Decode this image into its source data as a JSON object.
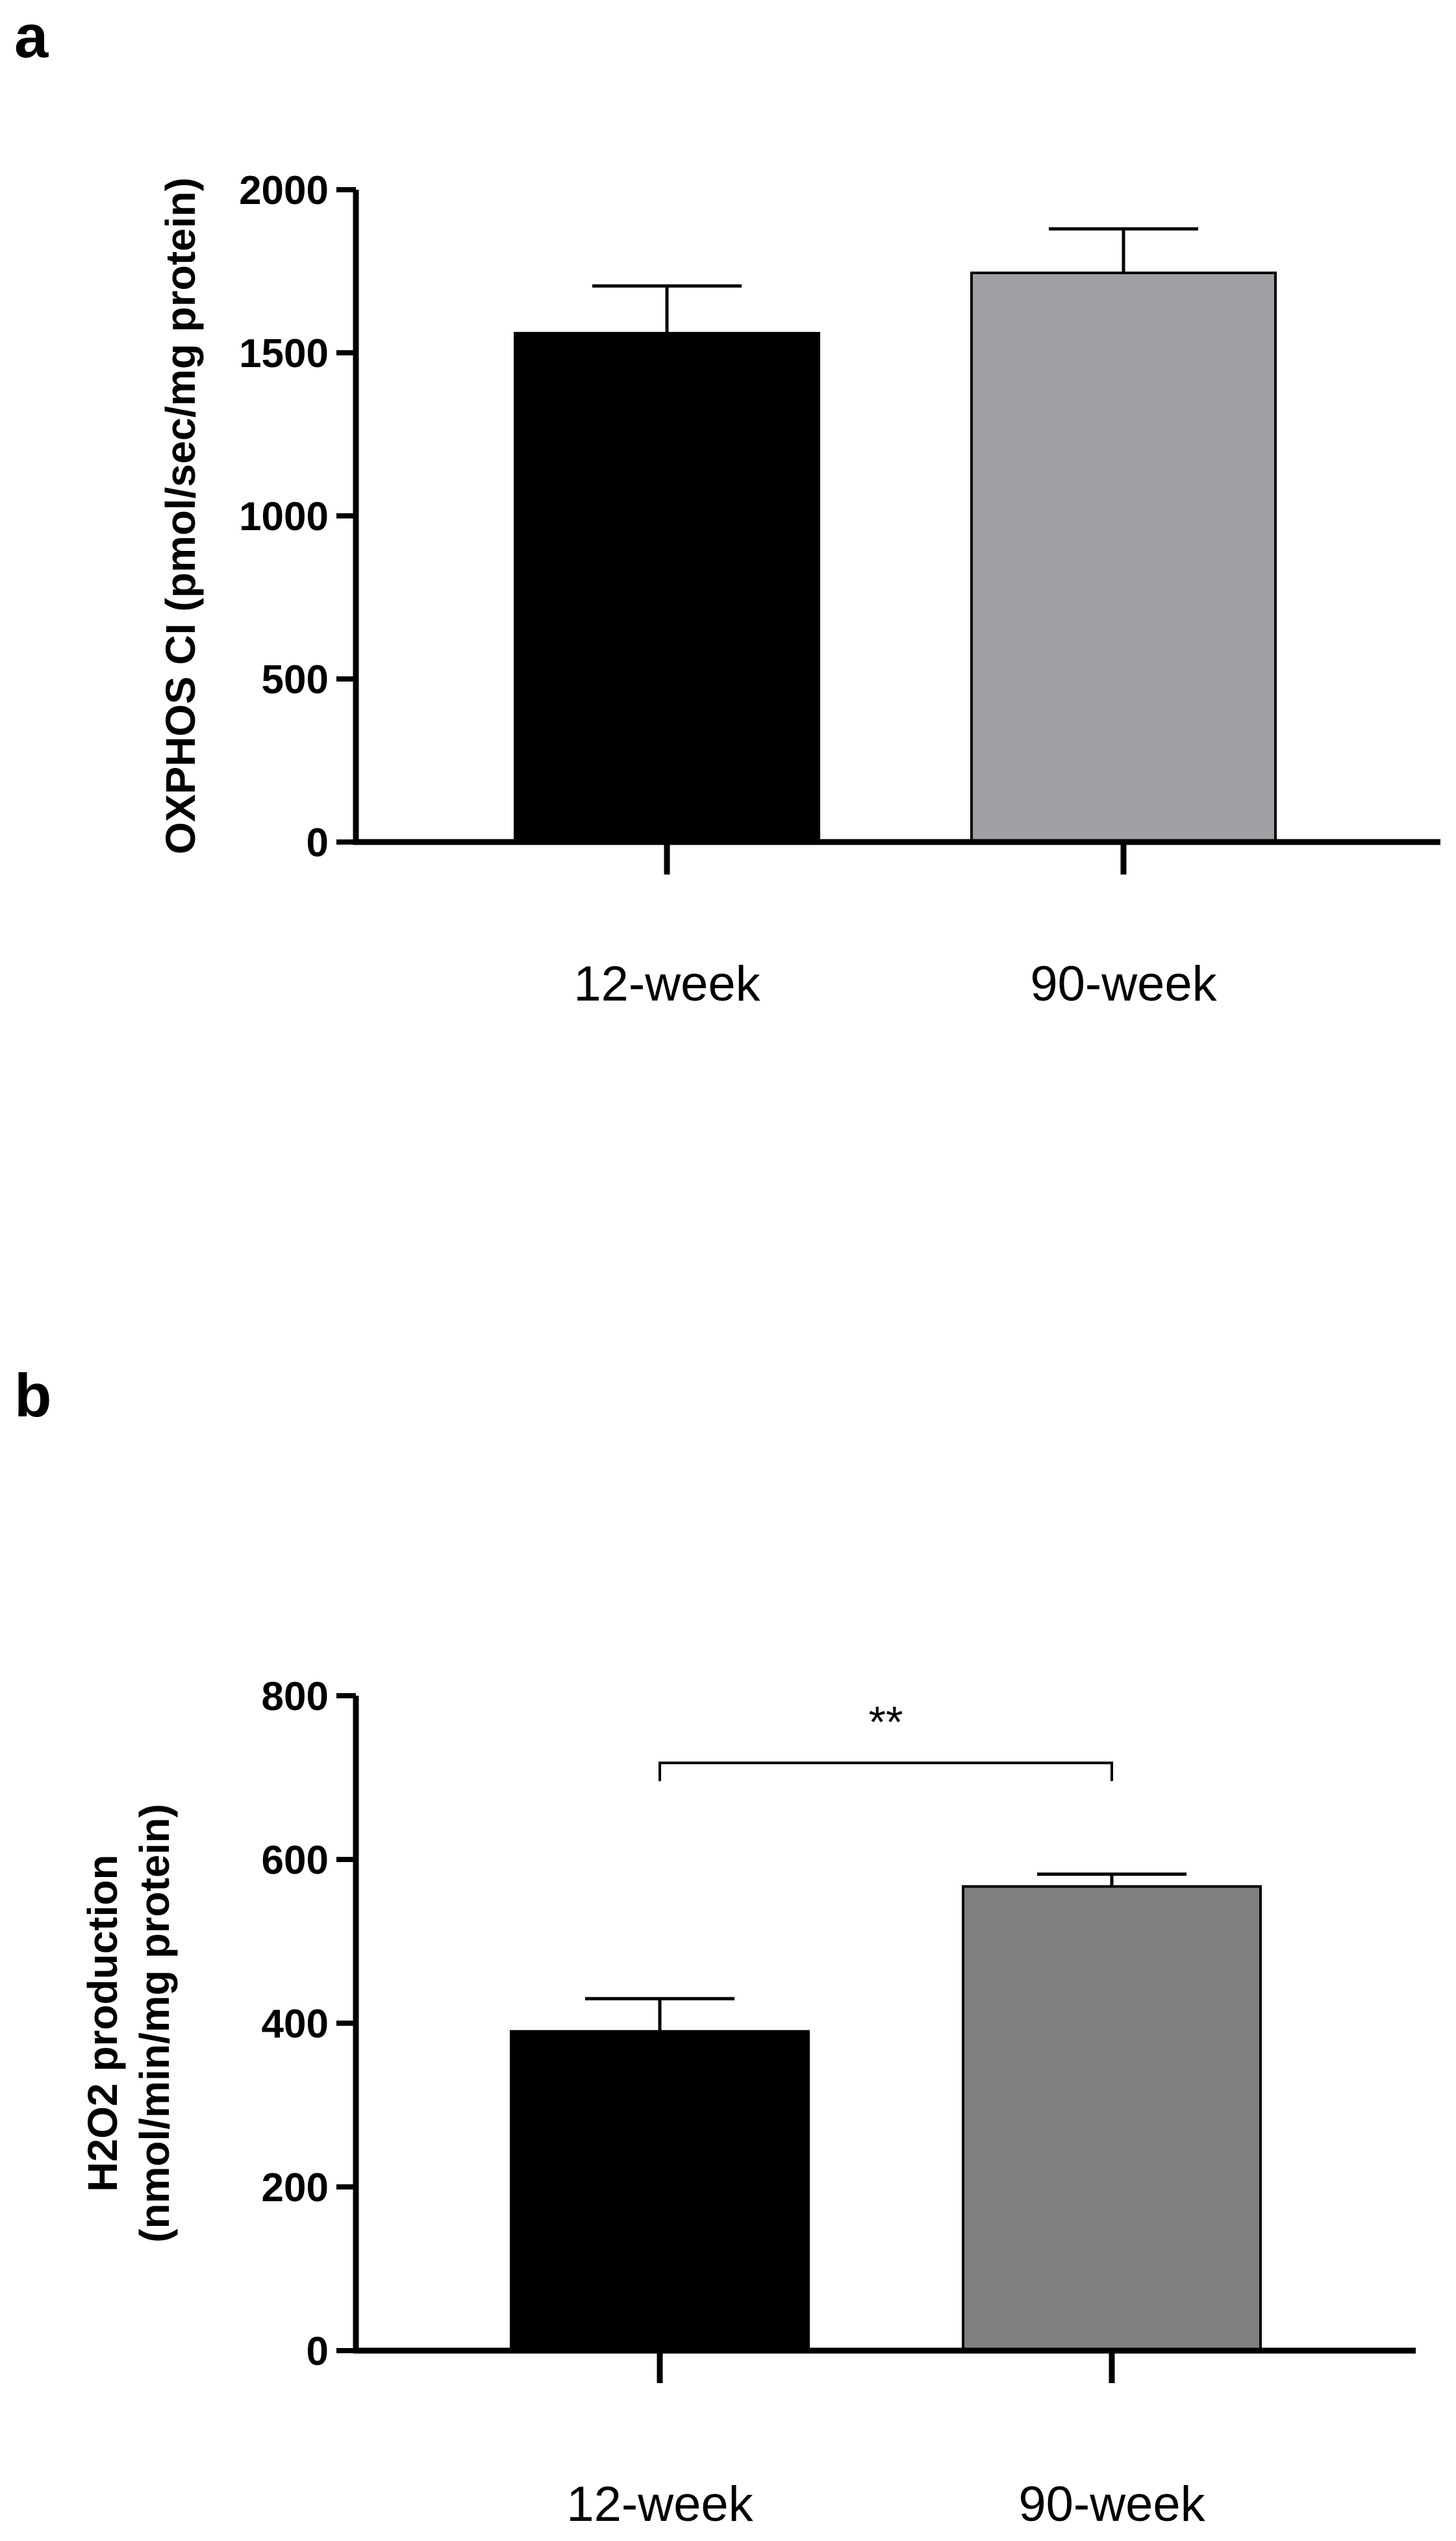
{
  "chart_data": [
    {
      "panel": "a",
      "type": "bar",
      "categories": [
        "12-week",
        "90-week"
      ],
      "values": [
        1560,
        1745
      ],
      "errors": [
        145,
        135
      ],
      "colors": [
        "#000000",
        "#a0a0a4"
      ],
      "ylabel_lines": [
        "OXPHOS CI (pmol/sec/mg protein)"
      ],
      "ylim": [
        0,
        2000
      ],
      "yticks": [
        0,
        500,
        1000,
        1500,
        2000
      ],
      "ytick_labels": [
        "0",
        "500",
        "1000",
        "1500",
        "2000"
      ],
      "significance": null
    },
    {
      "panel": "b",
      "type": "bar",
      "categories": [
        "12-week",
        "90-week"
      ],
      "values": [
        390,
        567
      ],
      "errors": [
        40,
        15
      ],
      "colors": [
        "#000000",
        "#808080"
      ],
      "ylabel_lines": [
        "H2O2 production",
        "(nmol/min/mg protein)"
      ],
      "ylim": [
        0,
        800
      ],
      "yticks": [
        0,
        200,
        400,
        600,
        800
      ],
      "ytick_labels": [
        "0",
        "200",
        "400",
        "600",
        "800"
      ],
      "significance": {
        "label": "**",
        "between": [
          0,
          1
        ],
        "level": 718
      }
    }
  ]
}
